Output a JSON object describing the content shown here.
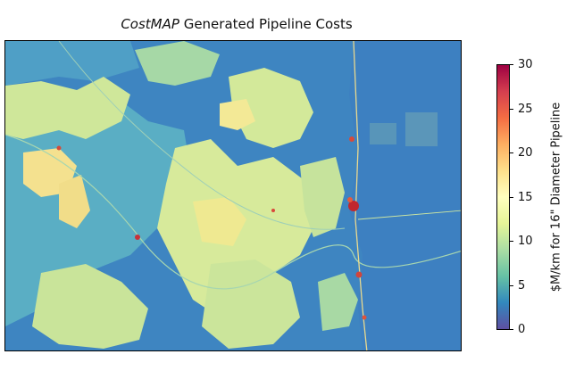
{
  "title": {
    "italic_part": "CostMAP",
    "rest": " Generated Pipeline Costs"
  },
  "colorbar": {
    "label": "$M/km for 16\" Diameter Pipeline",
    "min": 0,
    "max": 30,
    "ticks": [
      "0",
      "5",
      "10",
      "15",
      "20",
      "25",
      "30"
    ],
    "colormap": "Spectral_r",
    "colors": [
      "#5e4fa2",
      "#3288bd",
      "#66c2a5",
      "#abdda4",
      "#e6f598",
      "#ffffbf",
      "#fee08b",
      "#fdae61",
      "#f46d43",
      "#d53e4f",
      "#9e0142"
    ]
  },
  "map": {
    "background_color": "#3a7fbd",
    "lowland_color": "#5fb0c2",
    "mountain_color": "#d9ea9a",
    "highcost_color": "#f6e08c",
    "urban_color": "#c1272d"
  }
}
